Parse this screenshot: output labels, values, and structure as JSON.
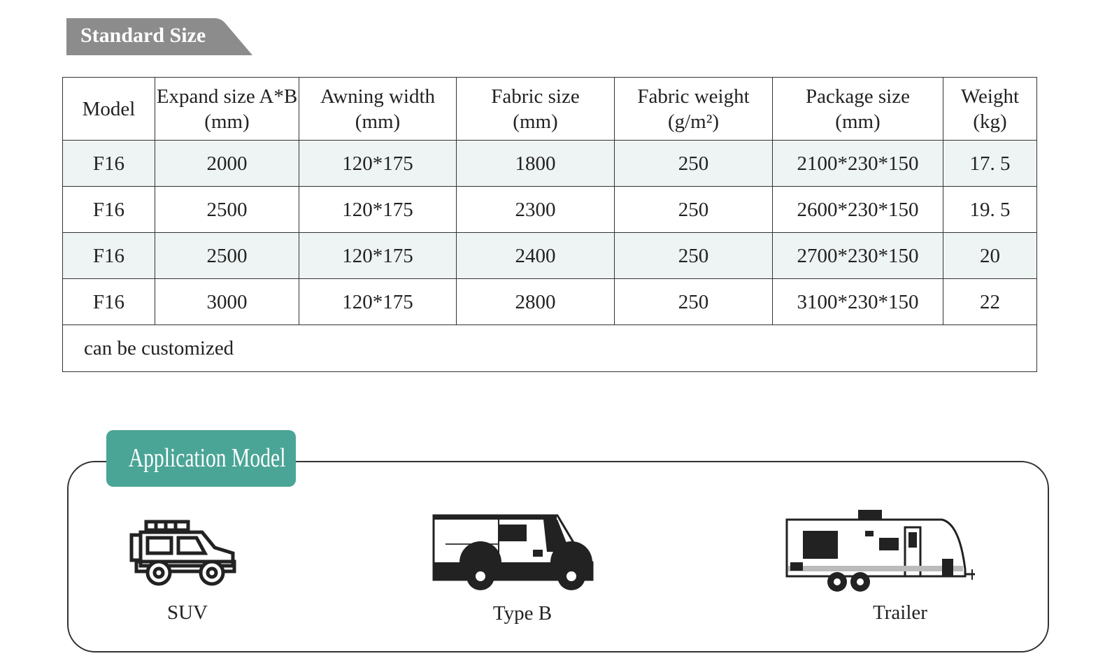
{
  "section_title": "Standard Size",
  "table": {
    "headers": [
      [
        "Model",
        ""
      ],
      [
        "Expand size A*B",
        "(mm)"
      ],
      [
        "Awning width",
        "(mm)"
      ],
      [
        "Fabric size",
        "(mm)"
      ],
      [
        "Fabric weight",
        "(g/m²)"
      ],
      [
        "Package size",
        "(mm)"
      ],
      [
        "Weight",
        "(kg)"
      ]
    ],
    "rows": [
      [
        "F16",
        "2000",
        "120*175",
        "1800",
        "250",
        "2100*230*150",
        "17. 5"
      ],
      [
        "F16",
        "2500",
        "120*175",
        "2300",
        "250",
        "2600*230*150",
        "19. 5"
      ],
      [
        "F16",
        "2500",
        "120*175",
        "2400",
        "250",
        "2700*230*150",
        "20"
      ],
      [
        "F16",
        "3000",
        "120*175",
        "2800",
        "250",
        "3100*230*150",
        "22"
      ]
    ],
    "note": "can be customized"
  },
  "application": {
    "title": "Application Model",
    "accent": "#4aa596",
    "vehicles": [
      {
        "label": "SUV",
        "icon": "suv-icon"
      },
      {
        "label": "Type B",
        "icon": "van-icon"
      },
      {
        "label": "Trailer",
        "icon": "trailer-icon"
      }
    ]
  }
}
